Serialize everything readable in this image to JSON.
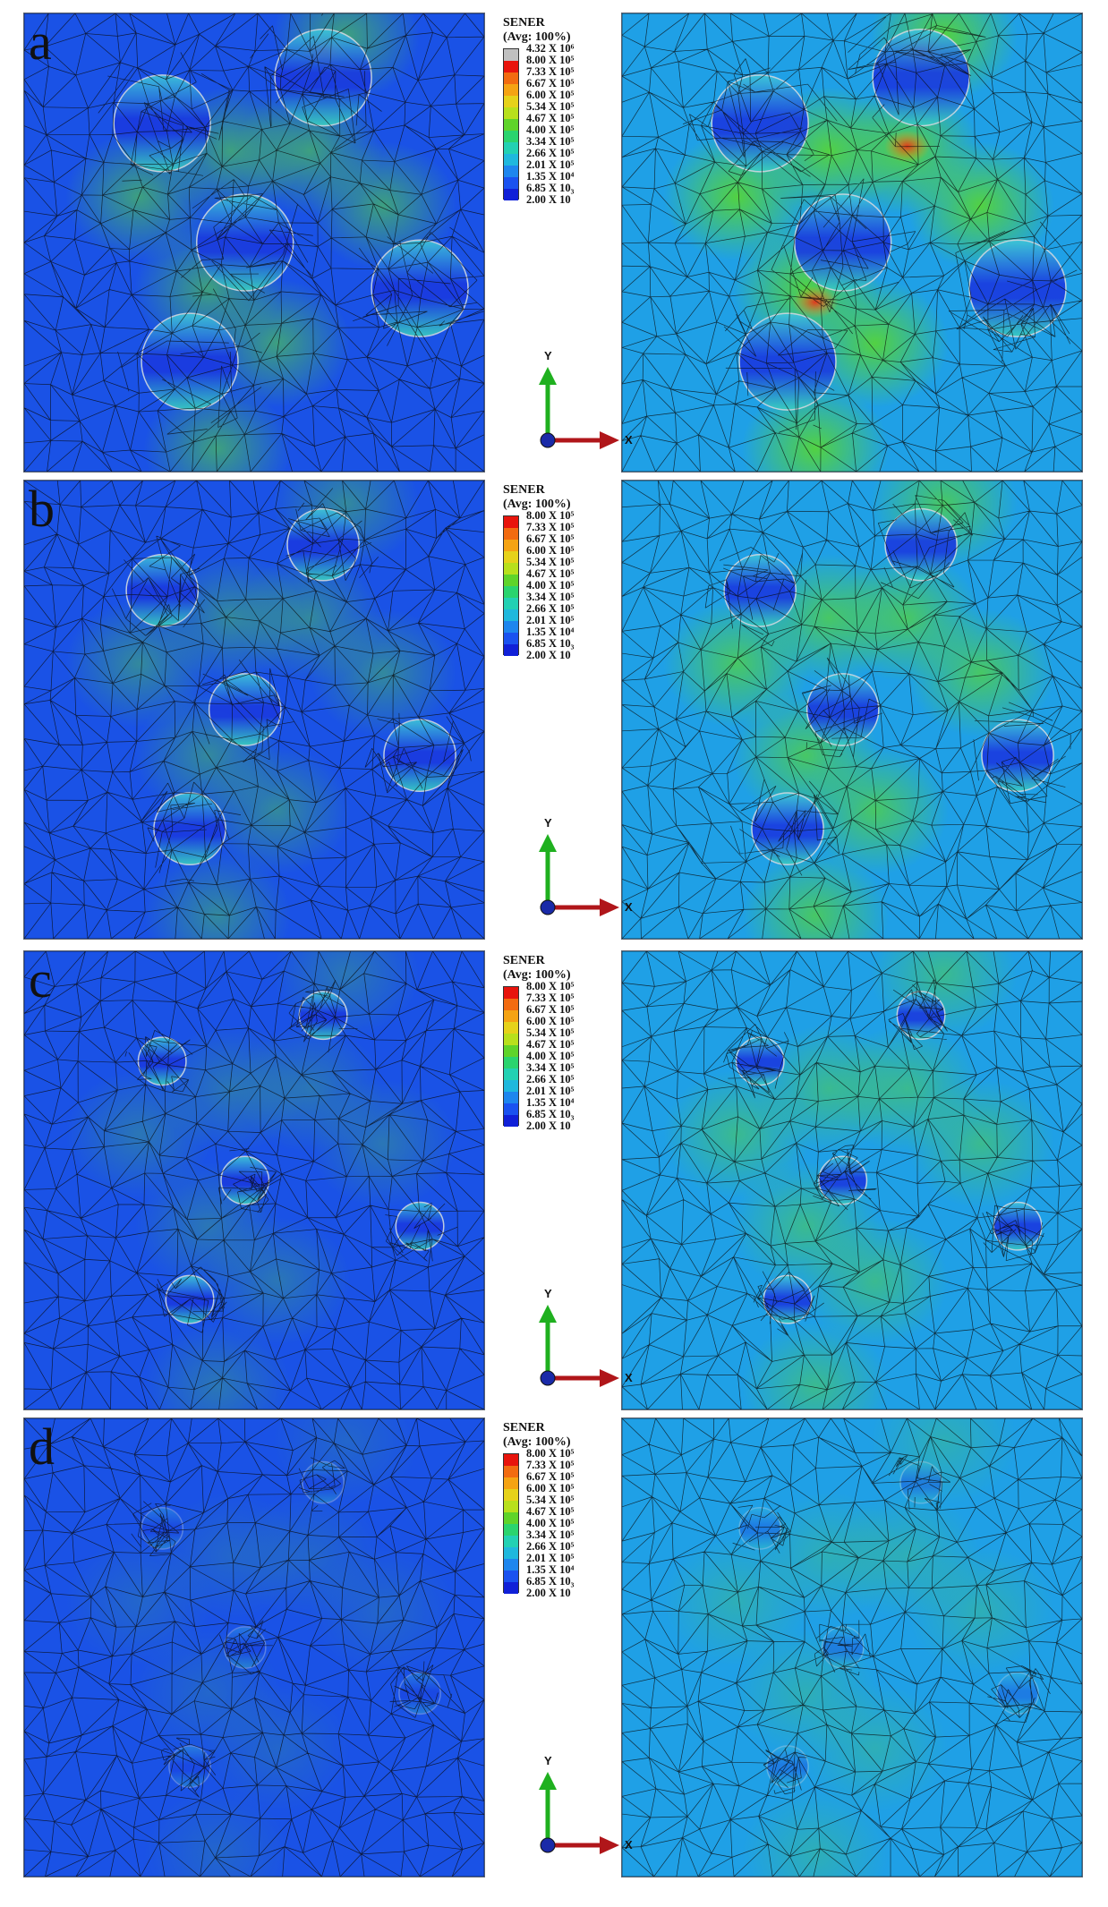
{
  "legend": {
    "title": "SENER",
    "subtitle": "(Avg: 100%)",
    "colors": [
      "#c0c0c0",
      "#e8140c",
      "#f26b10",
      "#f5a313",
      "#e6d21a",
      "#b8e01c",
      "#5fd42a",
      "#2ad46e",
      "#22d1b3",
      "#1fb8dd",
      "#1e86ee",
      "#1a52f0",
      "#1020d8"
    ]
  },
  "rows": [
    {
      "letter": "a",
      "ticks": [
        "4.32 X 10⁶",
        "8.00 X 10⁵",
        "7.33 X 10⁵",
        "6.67 X 10⁵",
        "6.00 X 10⁵",
        "5.34 X 10⁵",
        "4.67 X 10⁵",
        "4.00 X 10⁵",
        "3.34 X 10⁵",
        "2.66 X 10⁵",
        "2.01 X 10⁵",
        "1.35 X 10⁴",
        "6.85 X 10₃",
        "2.00 X 10"
      ],
      "sphere_size": "large"
    },
    {
      "letter": "b",
      "ticks": [
        "8.00 X 10⁵",
        "7.33 X 10⁵",
        "6.67 X 10⁵",
        "6.00 X 10⁵",
        "5.34 X 10⁵",
        "4.67 X 10⁵",
        "4.00 X 10⁵",
        "3.34 X 10⁵",
        "2.66 X 10⁵",
        "2.01 X 10⁵",
        "1.35 X 10⁴",
        "6.85 X 10₃",
        "2.00 X 10"
      ],
      "sphere_size": "medium"
    },
    {
      "letter": "c",
      "ticks": [
        "8.00 X 10⁵",
        "7.33 X 10⁵",
        "6.67 X 10⁵",
        "6.00 X 10⁵",
        "5.34 X 10⁵",
        "4.67 X 10⁵",
        "4.00 X 10⁵",
        "3.34 X 10⁵",
        "2.66 X 10⁵",
        "2.01 X 10⁵",
        "1.35 X 10⁴",
        "6.85 X 10₃",
        "2.00 X 10"
      ],
      "sphere_size": "small"
    },
    {
      "letter": "d",
      "ticks": [
        "8.00 X 10⁵",
        "7.33 X 10⁵",
        "6.67 X 10⁵",
        "6.00 X 10⁵",
        "5.34 X 10⁵",
        "4.67 X 10⁵",
        "4.00 X 10⁵",
        "3.34 X 10⁵",
        "2.66 X 10⁵",
        "2.01 X 10⁵",
        "1.35 X 10⁴",
        "6.85 X 10₃",
        "2.00 X 10"
      ],
      "sphere_size": "tiny"
    }
  ],
  "axes": {
    "y_label": "Y",
    "x_label": "X",
    "y_color": "#1fb01f",
    "x_color": "#b0161a",
    "origin_color": "#1a2aa8"
  },
  "field_colors": {
    "base_left": "#1a52e6",
    "base_right": "#1fa0e6",
    "hot_green": "#55d43a",
    "hot_red": "#e8301a",
    "mesh": "#0a0a0a"
  }
}
